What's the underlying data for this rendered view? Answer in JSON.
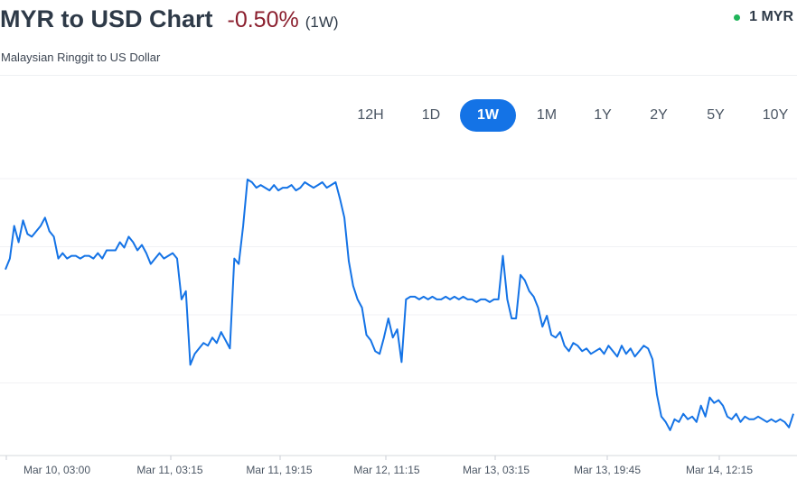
{
  "header": {
    "title": "MYR to USD Chart",
    "change": "-0.50%",
    "period": "(1W)",
    "currency": "1 MYR",
    "subtitle": "Malaysian Ringgit to US Dollar"
  },
  "ranges": [
    {
      "label": "12H",
      "active": false
    },
    {
      "label": "1D",
      "active": false
    },
    {
      "label": "1W",
      "active": true
    },
    {
      "label": "1M",
      "active": false
    },
    {
      "label": "1Y",
      "active": false
    },
    {
      "label": "2Y",
      "active": false
    },
    {
      "label": "5Y",
      "active": false
    },
    {
      "label": "10Y",
      "active": false
    }
  ],
  "colors": {
    "line": "#1473e6",
    "negative": "#8b1f2e",
    "live_dot": "#20b55a"
  },
  "chart_data": {
    "type": "line",
    "x_tick_labels": [
      "Mar 10, 03:00",
      "Mar 11, 03:15",
      "Mar 11, 19:15",
      "Mar 12, 11:15",
      "Mar 13, 03:15",
      "Mar 13, 19:45",
      "Mar 14, 12:15"
    ],
    "ylim": [
      0,
      100
    ],
    "grid": true,
    "series": [
      {
        "values": [
          66,
          70,
          82,
          76,
          84,
          79,
          78,
          80,
          82,
          85,
          80,
          78,
          70,
          72,
          70,
          71,
          71,
          70,
          71,
          71,
          70,
          72,
          70,
          73,
          73,
          73,
          76,
          74,
          78,
          76,
          73,
          75,
          72,
          68,
          70,
          72,
          70,
          71,
          72,
          70,
          55,
          58,
          31,
          35,
          37,
          39,
          38,
          41,
          39,
          43,
          40,
          37,
          70,
          68,
          82,
          99,
          98,
          96,
          97,
          96,
          95,
          97,
          95,
          96,
          96,
          97,
          95,
          96,
          98,
          97,
          96,
          97,
          98,
          96,
          97,
          98,
          92,
          85,
          69,
          60,
          55,
          52,
          42,
          40,
          36,
          35,
          41,
          48,
          41,
          44,
          32,
          55,
          56,
          56,
          55,
          56,
          55,
          56,
          55,
          55,
          56,
          55,
          56,
          55,
          56,
          55,
          55,
          54,
          55,
          55,
          54,
          55,
          55,
          71,
          55,
          48,
          48,
          64,
          62,
          58,
          56,
          52,
          45,
          49,
          42,
          41,
          43,
          38,
          36,
          39,
          38,
          36,
          37,
          35,
          36,
          37,
          35,
          38,
          36,
          34,
          38,
          35,
          37,
          34,
          36,
          38,
          37,
          33,
          20,
          12,
          10,
          7,
          11,
          10,
          13,
          11,
          12,
          10,
          16,
          12,
          19,
          17,
          18,
          16,
          12,
          11,
          13,
          10,
          12,
          11,
          11,
          12,
          11,
          10,
          11,
          10,
          11,
          10,
          8,
          13
        ]
      }
    ]
  }
}
